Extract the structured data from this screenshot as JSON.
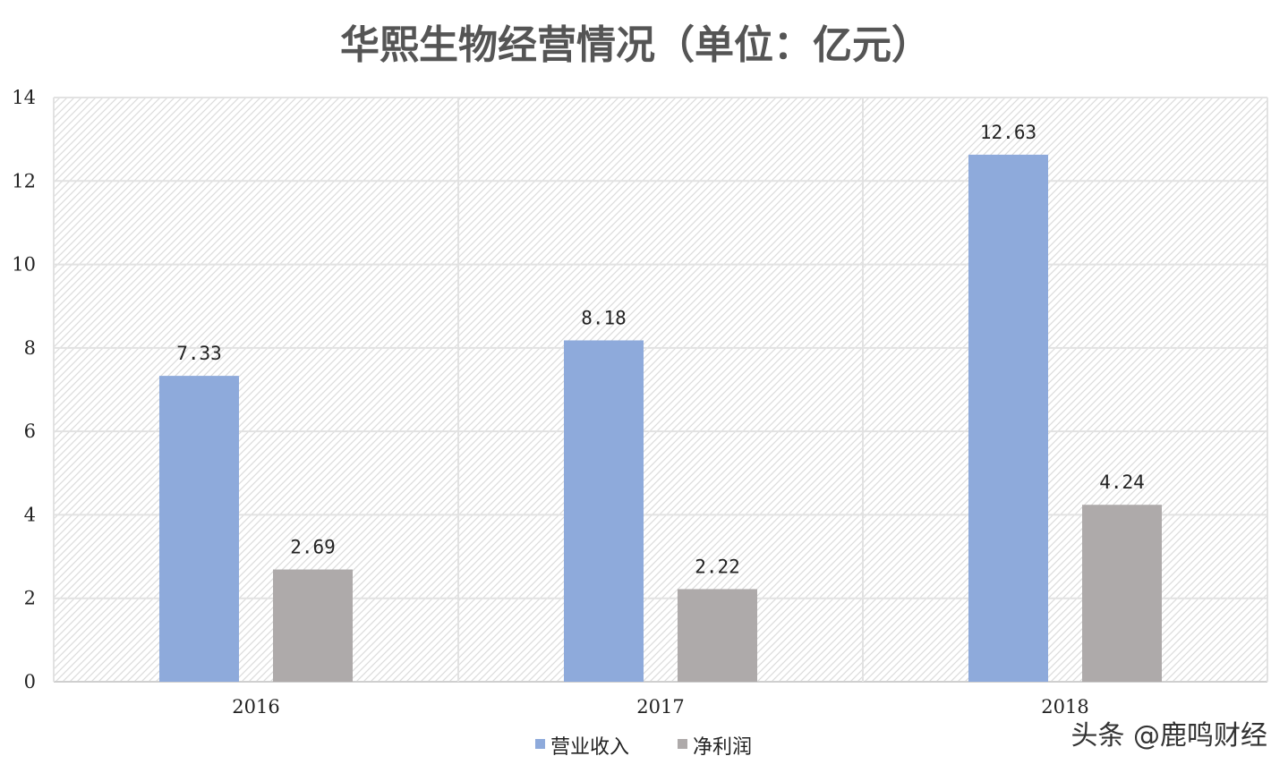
{
  "chart_data": {
    "type": "bar",
    "title": "华熙生物经营情况（单位：亿元）",
    "categories": [
      "2016",
      "2017",
      "2018"
    ],
    "series": [
      {
        "name": "营业收入",
        "values": [
          7.33,
          8.18,
          12.63
        ],
        "color": "#8eaadb"
      },
      {
        "name": "净利润",
        "values": [
          2.69,
          2.22,
          4.24
        ],
        "color": "#aeaaaa"
      }
    ],
    "data_labels": [
      [
        "7.33",
        "8.18",
        "12.63"
      ],
      [
        "2.69",
        "2.22",
        "4.24"
      ]
    ],
    "ylim": [
      0,
      14
    ],
    "yticks": [
      "0",
      "2",
      "4",
      "6",
      "8",
      "10",
      "12",
      "14"
    ],
    "grid": true,
    "legend_position": "bottom"
  },
  "watermark": {
    "text": "头条 @鹿鸣财经"
  }
}
